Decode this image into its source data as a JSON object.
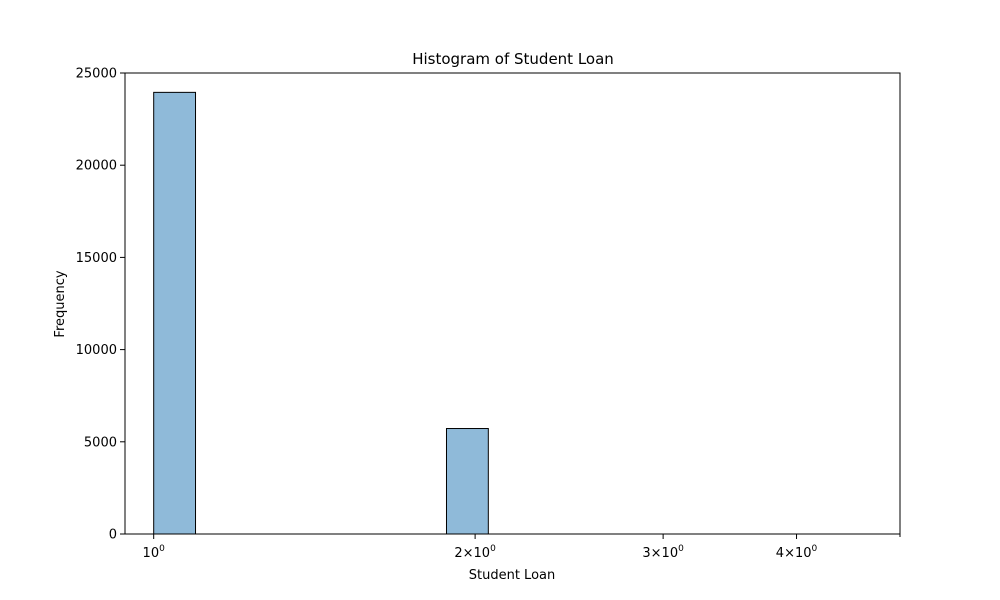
{
  "chart_data": {
    "type": "bar",
    "title": "Histogram of Student Loan",
    "xlabel": "Student Loan",
    "ylabel": "Frequency",
    "x_scale": "log",
    "xlim": [
      0.94,
      5.0
    ],
    "ylim": [
      0,
      25000
    ],
    "y_ticks": [
      "0",
      "5000",
      "10000",
      "15000",
      "20000",
      "25000"
    ],
    "x_ticks": [
      {
        "value": 1,
        "base": "10",
        "exp": "0"
      },
      {
        "value": 2,
        "base": "2×10",
        "exp": "0"
      },
      {
        "value": 3,
        "base": "3×10",
        "exp": "0"
      },
      {
        "value": 4,
        "base": "4×10",
        "exp": "0"
      }
    ],
    "bins": [
      {
        "x0": 1.0,
        "x1": 1.0944,
        "value": 23950
      },
      {
        "x0": 1.0944,
        "x1": 1.1977,
        "value": 0
      },
      {
        "x0": 1.1977,
        "x1": 1.3108,
        "value": 0
      },
      {
        "x0": 1.3108,
        "x1": 1.4345,
        "value": 0
      },
      {
        "x0": 1.4345,
        "x1": 1.5699,
        "value": 0
      },
      {
        "x0": 1.5699,
        "x1": 1.7181,
        "value": 0
      },
      {
        "x0": 1.7181,
        "x1": 1.8803,
        "value": 0
      },
      {
        "x0": 1.8803,
        "x1": 2.0578,
        "value": 5720
      },
      {
        "x0": 2.0578,
        "x1": 2.252,
        "value": 0
      },
      {
        "x0": 2.252,
        "x1": 2.4646,
        "value": 0
      },
      {
        "x0": 2.4646,
        "x1": 2.6973,
        "value": 0
      },
      {
        "x0": 2.6973,
        "x1": 2.9519,
        "value": 0
      },
      {
        "x0": 2.9519,
        "x1": 3.2306,
        "value": 0
      },
      {
        "x0": 3.2306,
        "x1": 3.5355,
        "value": 0
      },
      {
        "x0": 3.5355,
        "x1": 3.8693,
        "value": 0
      },
      {
        "x0": 3.8693,
        "x1": 4.2346,
        "value": 0
      },
      {
        "x0": 4.2346,
        "x1": 4.6344,
        "value": 0
      },
      {
        "x0": 4.6344,
        "x1": 5.0718,
        "value": 0
      }
    ],
    "bar_color": "#8fbad9",
    "edge_color": "#000000"
  }
}
